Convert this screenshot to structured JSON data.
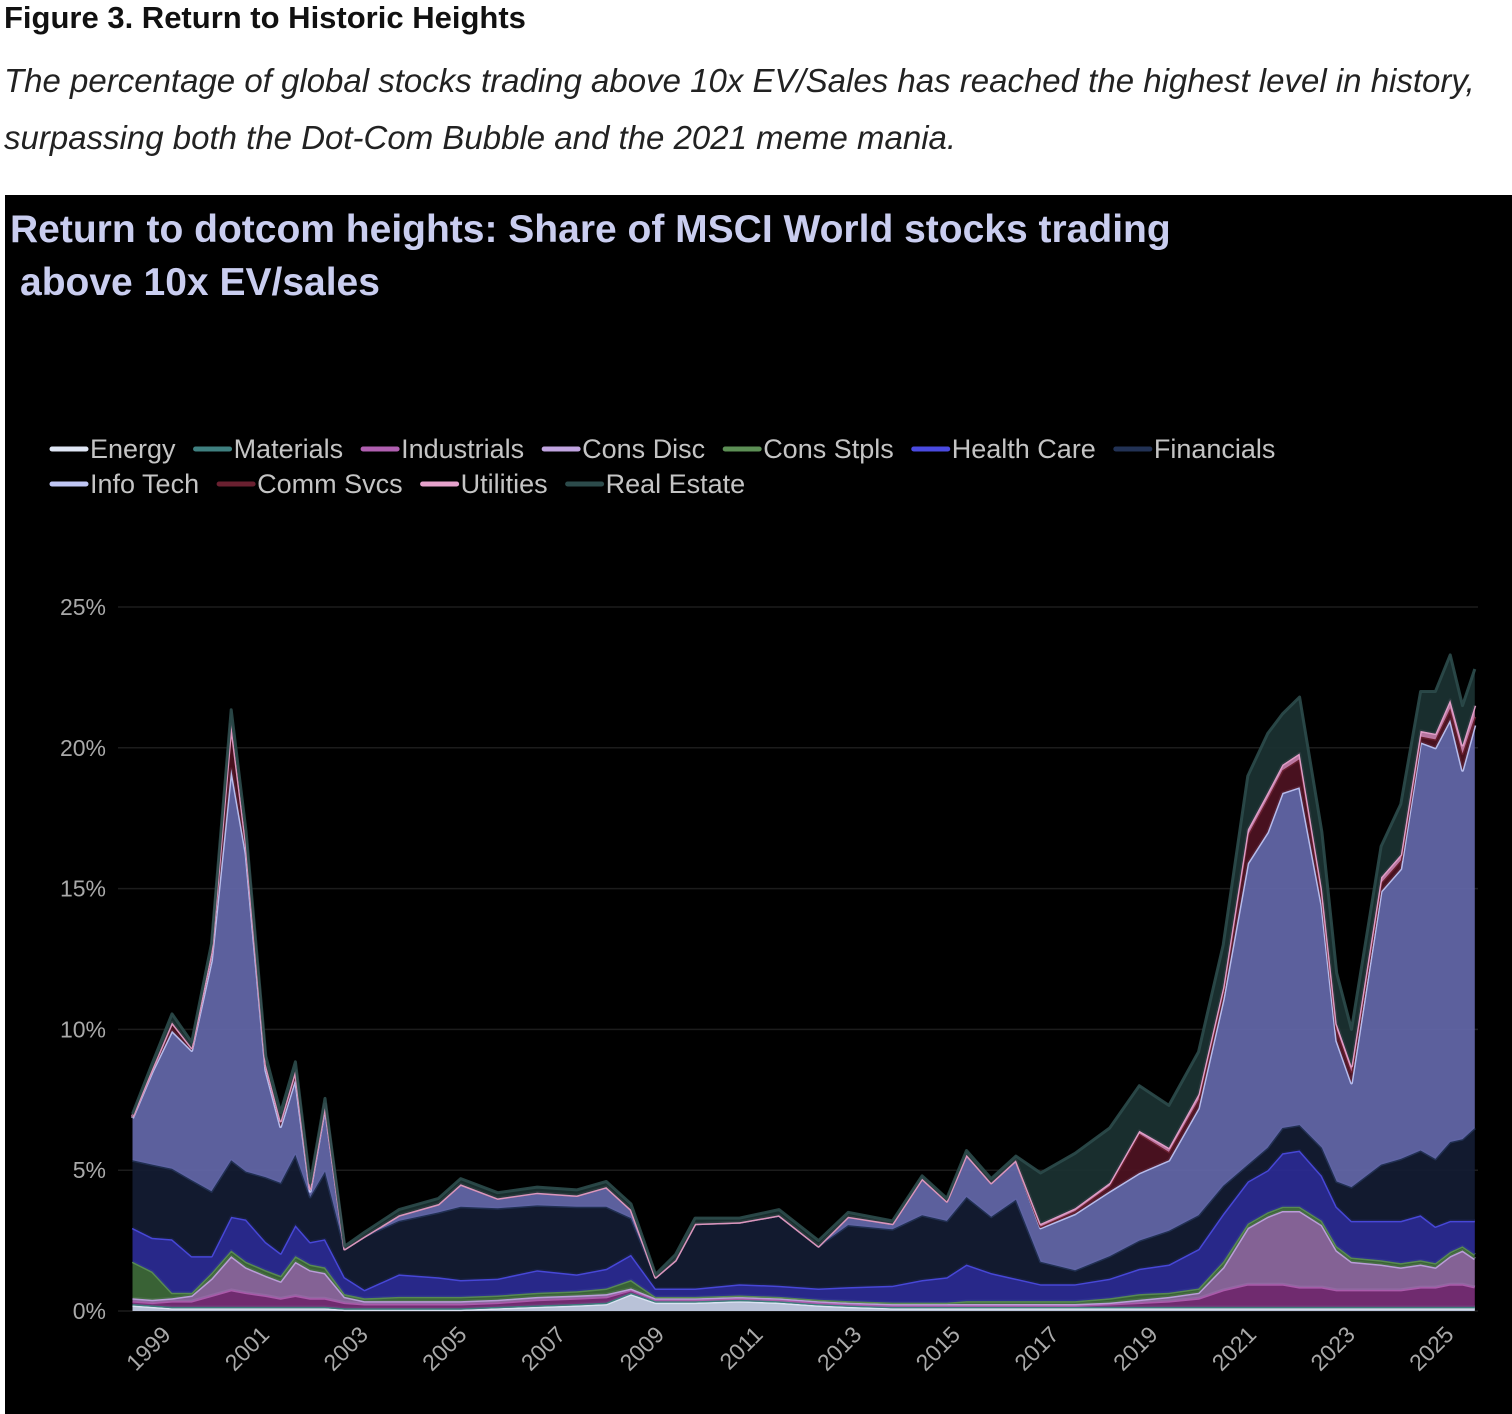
{
  "figure": {
    "title": "Figure 3. Return to Historic Heights",
    "subtitle": "The percentage of global stocks trading above 10x EV/Sales has reached the highest level in history, surpassing both the Dot-Com Bubble and the 2021 meme mania."
  },
  "chart_data": {
    "type": "area",
    "stacked": true,
    "title_line1": "Return to dotcom heights: Share of MSCI World stocks trading",
    "title_line2": "above 10x EV/sales",
    "xlabel": "",
    "ylabel": "",
    "ylim": [
      0,
      25
    ],
    "xlim": [
      1998.2,
      2025.4
    ],
    "y_ticks": [
      0,
      5,
      10,
      15,
      20,
      25
    ],
    "y_tick_labels": [
      "0%",
      "5%",
      "10%",
      "15%",
      "20%",
      "25%"
    ],
    "x_ticks": [
      1999,
      2001,
      2003,
      2005,
      2007,
      2009,
      2011,
      2013,
      2015,
      2017,
      2019,
      2021,
      2023,
      2025
    ],
    "x_tick_labels": [
      "1999",
      "2001",
      "2003",
      "2005",
      "2007",
      "2009",
      "2011",
      "2013",
      "2015",
      "2017",
      "2019",
      "2021",
      "2023",
      "2025"
    ],
    "grid": true,
    "legend_position": "top-left",
    "x": [
      1998.2,
      1998.6,
      1999.0,
      1999.4,
      1999.8,
      2000.2,
      2000.5,
      2000.9,
      2001.2,
      2001.5,
      2001.8,
      2002.1,
      2002.5,
      2002.9,
      2003.6,
      2004.4,
      2004.85,
      2005.6,
      2006.4,
      2007.2,
      2007.8,
      2008.3,
      2008.8,
      2009.2,
      2009.6,
      2010.5,
      2011.3,
      2012.1,
      2012.7,
      2013.6,
      2014.2,
      2014.7,
      2015.1,
      2015.6,
      2016.1,
      2016.6,
      2017.3,
      2018.0,
      2018.6,
      2019.2,
      2019.8,
      2020.3,
      2020.8,
      2021.2,
      2021.5,
      2021.85,
      2022.3,
      2022.6,
      2022.9,
      2023.5,
      2023.9,
      2024.3,
      2024.6,
      2024.9,
      2025.15,
      2025.4
    ],
    "series": [
      {
        "name": "Energy",
        "color": "#dfe6f5",
        "fill": "#c9d3ea",
        "values": [
          0.2,
          0.15,
          0.1,
          0.1,
          0.1,
          0.1,
          0.1,
          0.1,
          0.1,
          0.1,
          0.1,
          0.1,
          0.05,
          0.05,
          0.05,
          0.05,
          0.05,
          0.1,
          0.15,
          0.2,
          0.25,
          0.6,
          0.3,
          0.3,
          0.3,
          0.35,
          0.3,
          0.2,
          0.15,
          0.1,
          0.1,
          0.1,
          0.1,
          0.1,
          0.1,
          0.1,
          0.1,
          0.1,
          0.1,
          0.1,
          0.1,
          0.1,
          0.1,
          0.1,
          0.1,
          0.1,
          0.1,
          0.1,
          0.1,
          0.1,
          0.1,
          0.1,
          0.1,
          0.1,
          0.1,
          0.1
        ]
      },
      {
        "name": "Materials",
        "color": "#3f8080",
        "fill": "#2c5a5a",
        "values": [
          0.05,
          0.05,
          0.05,
          0.05,
          0.05,
          0.05,
          0.05,
          0.05,
          0.05,
          0.05,
          0.05,
          0.05,
          0.05,
          0.05,
          0.05,
          0.05,
          0.05,
          0.05,
          0.05,
          0.05,
          0.05,
          0.05,
          0.05,
          0.05,
          0.05,
          0.05,
          0.05,
          0.05,
          0.05,
          0.05,
          0.05,
          0.05,
          0.05,
          0.05,
          0.05,
          0.05,
          0.05,
          0.05,
          0.05,
          0.05,
          0.05,
          0.05,
          0.05,
          0.05,
          0.05,
          0.05,
          0.05,
          0.05,
          0.05,
          0.05,
          0.05,
          0.05,
          0.05,
          0.05,
          0.05,
          0.05
        ]
      },
      {
        "name": "Industrials",
        "color": "#b05fb0",
        "fill": "#7a2f78",
        "values": [
          0.1,
          0.1,
          0.2,
          0.2,
          0.4,
          0.6,
          0.5,
          0.4,
          0.3,
          0.4,
          0.3,
          0.3,
          0.2,
          0.15,
          0.15,
          0.15,
          0.15,
          0.15,
          0.2,
          0.2,
          0.2,
          0.1,
          0.05,
          0.05,
          0.05,
          0.05,
          0.05,
          0.05,
          0.05,
          0.05,
          0.05,
          0.05,
          0.05,
          0.05,
          0.05,
          0.05,
          0.05,
          0.1,
          0.15,
          0.2,
          0.3,
          0.6,
          0.8,
          0.8,
          0.8,
          0.7,
          0.7,
          0.6,
          0.6,
          0.6,
          0.6,
          0.7,
          0.7,
          0.8,
          0.8,
          0.7
        ]
      },
      {
        "name": "Cons Disc",
        "color": "#c0a4e0",
        "fill": "#8f6aa2",
        "values": [
          0.1,
          0.1,
          0.1,
          0.2,
          0.6,
          1.2,
          0.9,
          0.7,
          0.6,
          1.2,
          1.0,
          0.9,
          0.2,
          0.1,
          0.1,
          0.1,
          0.1,
          0.1,
          0.1,
          0.1,
          0.1,
          0.05,
          0.05,
          0.05,
          0.05,
          0.05,
          0.05,
          0.05,
          0.05,
          0.05,
          0.05,
          0.05,
          0.05,
          0.05,
          0.05,
          0.05,
          0.05,
          0.05,
          0.1,
          0.15,
          0.2,
          0.8,
          2.0,
          2.4,
          2.6,
          2.7,
          2.2,
          1.4,
          1.0,
          0.9,
          0.8,
          0.8,
          0.7,
          1.0,
          1.2,
          1.0
        ]
      },
      {
        "name": "Cons Stpls",
        "color": "#5c8f55",
        "fill": "#3e6a3a",
        "values": [
          1.3,
          1.0,
          0.2,
          0.1,
          0.2,
          0.2,
          0.2,
          0.2,
          0.2,
          0.2,
          0.2,
          0.2,
          0.1,
          0.1,
          0.15,
          0.15,
          0.15,
          0.15,
          0.15,
          0.15,
          0.2,
          0.3,
          0.05,
          0.05,
          0.05,
          0.05,
          0.05,
          0.05,
          0.05,
          0.05,
          0.05,
          0.05,
          0.1,
          0.1,
          0.1,
          0.1,
          0.1,
          0.15,
          0.2,
          0.15,
          0.15,
          0.2,
          0.15,
          0.15,
          0.15,
          0.15,
          0.15,
          0.15,
          0.15,
          0.15,
          0.15,
          0.15,
          0.15,
          0.15,
          0.15,
          0.15
        ]
      },
      {
        "name": "Health Care",
        "color": "#4a4ae0",
        "fill": "#2b2b95",
        "values": [
          1.2,
          1.2,
          1.9,
          1.3,
          0.6,
          1.2,
          1.5,
          1.0,
          0.8,
          1.1,
          0.8,
          1.0,
          0.6,
          0.3,
          0.8,
          0.7,
          0.6,
          0.6,
          0.8,
          0.6,
          0.7,
          0.9,
          0.3,
          0.3,
          0.3,
          0.4,
          0.4,
          0.4,
          0.5,
          0.6,
          0.8,
          0.9,
          1.3,
          1.0,
          0.8,
          0.6,
          0.6,
          0.7,
          0.9,
          1.0,
          1.4,
          1.7,
          1.5,
          1.5,
          1.9,
          2.0,
          1.6,
          1.4,
          1.3,
          1.4,
          1.5,
          1.6,
          1.3,
          1.1,
          0.9,
          1.2
        ]
      },
      {
        "name": "Financials",
        "color": "#223255",
        "fill": "#131c33",
        "values": [
          2.4,
          2.6,
          2.5,
          2.7,
          2.3,
          2.0,
          1.7,
          2.3,
          2.5,
          2.5,
          1.6,
          2.4,
          1.0,
          1.9,
          1.9,
          2.3,
          2.6,
          2.5,
          2.3,
          2.4,
          2.2,
          1.3,
          0.4,
          1.0,
          2.3,
          2.2,
          2.5,
          1.5,
          2.2,
          2.0,
          2.3,
          2.0,
          2.4,
          2.0,
          2.8,
          0.8,
          0.5,
          0.8,
          1.0,
          1.2,
          1.2,
          1.0,
          0.6,
          0.8,
          0.9,
          0.9,
          1.0,
          0.9,
          1.2,
          2.0,
          2.2,
          2.3,
          2.4,
          2.8,
          2.9,
          3.3
        ]
      },
      {
        "name": "Info Tech",
        "color": "#c0c6f5",
        "fill": "#6468aa",
        "values": [
          1.5,
          3.3,
          4.9,
          4.6,
          8.2,
          13.9,
          11.3,
          3.8,
          2.0,
          2.7,
          0.2,
          2.3,
          0,
          0,
          0.2,
          0.3,
          0.8,
          0.35,
          0.45,
          0.4,
          0.7,
          0.3,
          0,
          0,
          0,
          0,
          0,
          0,
          0.3,
          0.2,
          1.3,
          0.7,
          1.5,
          1.2,
          1.4,
          1.2,
          2.0,
          2.3,
          2.4,
          2.5,
          3.8,
          6.6,
          10.7,
          11.2,
          11.9,
          12.0,
          8.6,
          5.0,
          3.7,
          9.7,
          10.3,
          14.5,
          14.6,
          15.0,
          13.1,
          14.3
        ]
      },
      {
        "name": "Comm Svcs",
        "color": "#6a2030",
        "fill": "#4e1222",
        "values": [
          0.05,
          0.1,
          0.3,
          0.1,
          0.3,
          1.6,
          0.4,
          0.2,
          0.2,
          0.3,
          0.1,
          0.1,
          0,
          0,
          0,
          0,
          0,
          0,
          0,
          0,
          0,
          0,
          0,
          0,
          0,
          0,
          0,
          0,
          0,
          0,
          0,
          0,
          0,
          0,
          0,
          0.05,
          0.1,
          0.2,
          1.4,
          0.3,
          0.3,
          0.3,
          1.0,
          1.2,
          0.8,
          1.0,
          0.4,
          0.4,
          0.4,
          0.3,
          0.3,
          0.2,
          0.3,
          0.4,
          0.6,
          0.3
        ]
      },
      {
        "name": "Utilities",
        "color": "#e6a2cc",
        "fill": "#c57fab",
        "values": [
          0,
          0,
          0,
          0,
          0,
          0,
          0,
          0,
          0,
          0,
          0,
          0,
          0,
          0,
          0,
          0,
          0,
          0,
          0,
          0,
          0,
          0,
          0,
          0,
          0,
          0,
          0,
          0,
          0,
          0,
          0,
          0,
          0,
          0,
          0,
          0.1,
          0.1,
          0.1,
          0.1,
          0.15,
          0.2,
          0.15,
          0.2,
          0.2,
          0.2,
          0.2,
          0.2,
          0.2,
          0.2,
          0.2,
          0.2,
          0.2,
          0.2,
          0.3,
          0.3,
          0.4
        ]
      },
      {
        "name": "Real Estate",
        "color": "#2c4b4b",
        "fill": "#1b3232",
        "values": [
          0.1,
          0.2,
          0.3,
          0.2,
          0.3,
          0.5,
          0.4,
          0.3,
          0.3,
          0.3,
          0.2,
          0.2,
          0.1,
          0.15,
          0.2,
          0.2,
          0.2,
          0.2,
          0.2,
          0.2,
          0.2,
          0.2,
          0.1,
          0.2,
          0.2,
          0.15,
          0.2,
          0.2,
          0.15,
          0.1,
          0.1,
          0.1,
          0.15,
          0.15,
          0.15,
          1.8,
          1.95,
          1.95,
          1.6,
          1.5,
          1.5,
          1.5,
          1.9,
          2.1,
          1.8,
          2.0,
          2.0,
          1.8,
          1.3,
          1.1,
          1.8,
          1.4,
          1.5,
          1.6,
          1.4,
          1.3
        ]
      }
    ]
  }
}
